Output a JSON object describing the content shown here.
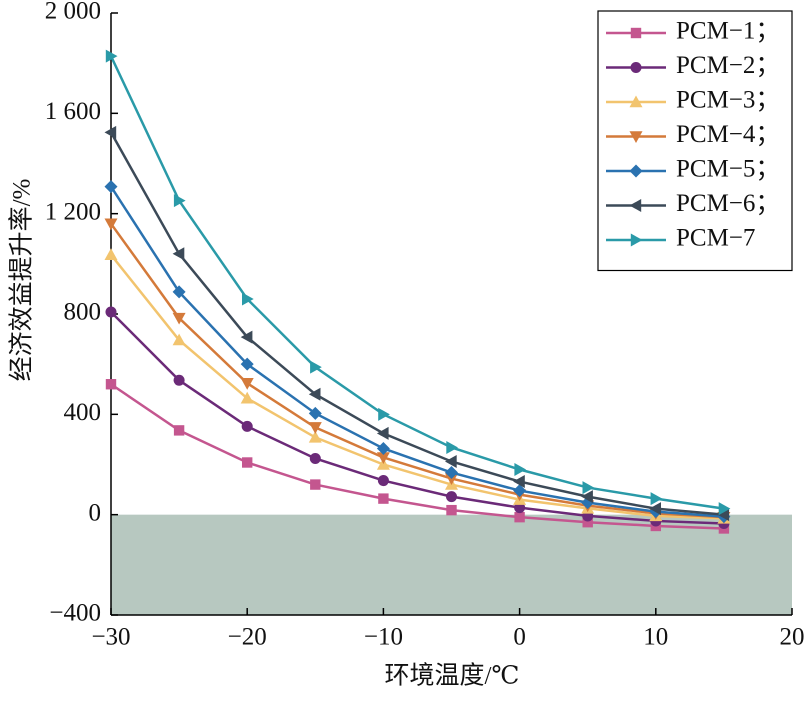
{
  "chart_data": {
    "type": "line",
    "xlabel": "环境温度/℃",
    "ylabel": "经济效益提升率/%",
    "x": [
      -30,
      -25,
      -20,
      -15,
      -10,
      -5,
      0,
      5,
      10,
      15
    ],
    "series": [
      {
        "name": "PCM−1；",
        "color": "#c4568f",
        "marker": "square",
        "values": [
          520,
          336,
          208,
          120,
          64,
          18,
          -10,
          -30,
          -45,
          -55
        ]
      },
      {
        "name": "PCM−2；",
        "color": "#6b2a78",
        "marker": "circle",
        "values": [
          808,
          536,
          352,
          224,
          136,
          72,
          28,
          -5,
          -25,
          -35
        ]
      },
      {
        "name": "PCM−3；",
        "color": "#f2c46e",
        "marker": "triangle-up",
        "values": [
          1036,
          696,
          464,
          308,
          200,
          120,
          60,
          25,
          -5,
          -15
        ]
      },
      {
        "name": "PCM−4；",
        "color": "#d47a3a",
        "marker": "triangle-down",
        "values": [
          1160,
          784,
          524,
          348,
          228,
          144,
          80,
          36,
          5,
          -10
        ]
      },
      {
        "name": "PCM−5；",
        "color": "#2a72b0",
        "marker": "diamond",
        "values": [
          1308,
          888,
          600,
          404,
          264,
          168,
          96,
          48,
          12,
          -8
        ]
      },
      {
        "name": "PCM−6；",
        "color": "#3c4a58",
        "marker": "triangle-left",
        "values": [
          1524,
          1040,
          708,
          480,
          324,
          212,
          132,
          72,
          24,
          0
        ]
      },
      {
        "name": "PCM−7",
        "color": "#2a9aa8",
        "marker": "triangle-right",
        "values": [
          1828,
          1252,
          860,
          588,
          400,
          268,
          180,
          108,
          64,
          24
        ]
      }
    ],
    "xlim": [
      -30,
      20
    ],
    "xticks": [
      {
        "value": -30,
        "label": "−30"
      },
      {
        "value": -20,
        "label": "−20"
      },
      {
        "value": -10,
        "label": "−10"
      },
      0,
      10,
      20
    ],
    "ylim": [
      -400,
      2000
    ],
    "yticks": [
      {
        "value": -400,
        "label": "−400"
      },
      0,
      400,
      800,
      {
        "value": 1200,
        "label": "1 200"
      },
      {
        "value": 1600,
        "label": "1 600"
      },
      {
        "value": 2000,
        "label": "2 000"
      }
    ],
    "negative_region_color": "#b7c8c0",
    "legend": "upper right"
  }
}
